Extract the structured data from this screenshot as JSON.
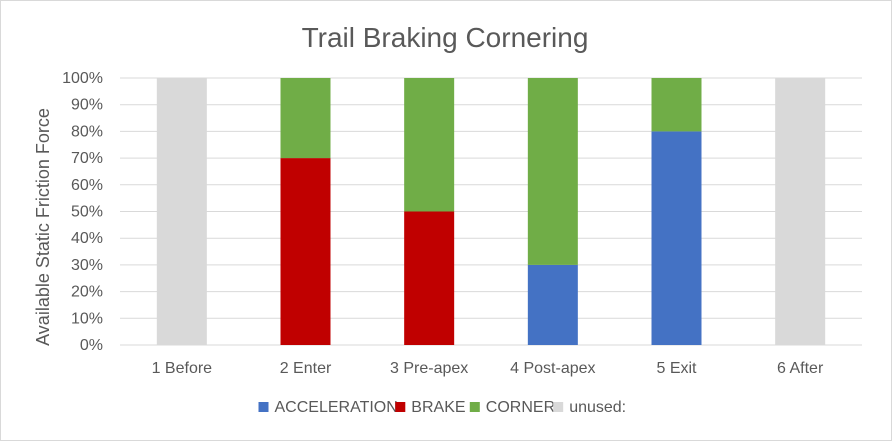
{
  "chart_data": {
    "type": "bar",
    "stacked": true,
    "title": "Trail Braking Cornering",
    "ylabel": "Available Static Friction Force",
    "xlabel": "",
    "categories": [
      "1 Before",
      "2 Enter",
      "3 Pre-apex",
      "4 Post-apex",
      "5 Exit",
      "6 After"
    ],
    "ylim": [
      0,
      100
    ],
    "y_ticks": [
      "0%",
      "10%",
      "20%",
      "30%",
      "40%",
      "50%",
      "60%",
      "70%",
      "80%",
      "90%",
      "100%"
    ],
    "grid": true,
    "legend_position": "bottom",
    "series": [
      {
        "name": "ACCELERATION",
        "color": "#4472c4",
        "values": [
          0,
          0,
          0,
          30,
          80,
          0
        ]
      },
      {
        "name": "BRAKE",
        "color": "#c00000",
        "values": [
          0,
          70,
          50,
          0,
          0,
          0
        ]
      },
      {
        "name": "CORNER",
        "color": "#70ad47",
        "values": [
          0,
          30,
          50,
          70,
          20,
          0
        ]
      },
      {
        "name": "unused:",
        "color": "#d9d9d9",
        "values": [
          100,
          0,
          0,
          0,
          0,
          100
        ]
      }
    ]
  }
}
